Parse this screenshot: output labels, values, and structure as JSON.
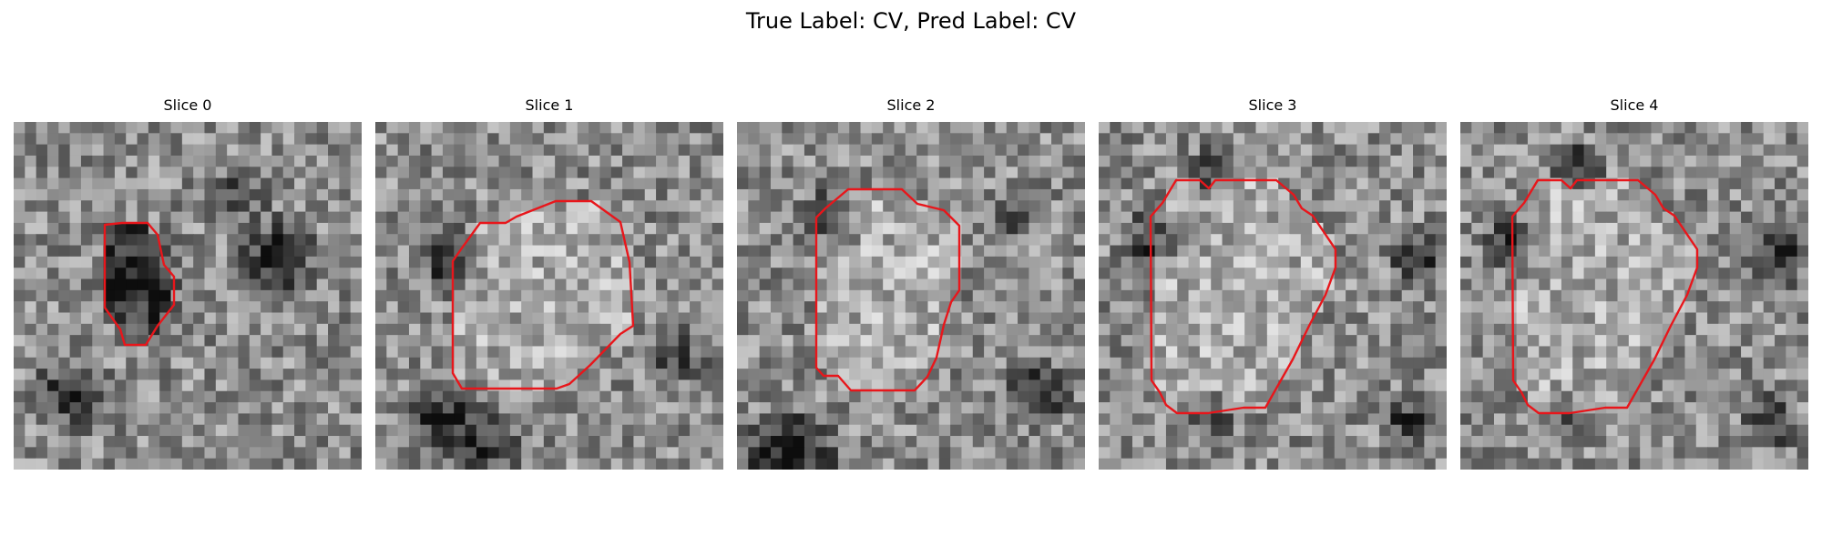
{
  "figure": {
    "title": "True Label: CV, Pred Label: CV",
    "contour_color": "#e8161b"
  },
  "slices": [
    {
      "title": "Slice 0"
    },
    {
      "title": "Slice 1"
    },
    {
      "title": "Slice 2"
    },
    {
      "title": "Slice 3"
    },
    {
      "title": "Slice 4"
    }
  ]
}
